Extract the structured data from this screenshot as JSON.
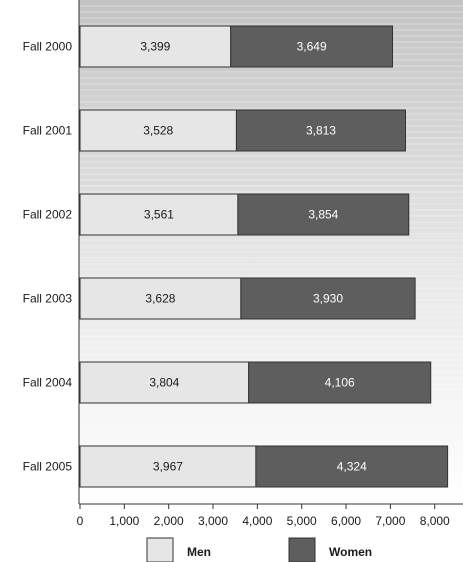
{
  "chart_data": {
    "type": "bar",
    "orientation": "horizontal",
    "stacked": true,
    "title": "",
    "xlabel": "",
    "ylabel": "",
    "categories": [
      "Fall 2000",
      "Fall 2001",
      "Fall 2002",
      "Fall 2003",
      "Fall 2004",
      "Fall 2005"
    ],
    "series": [
      {
        "name": "Men",
        "values": [
          3399,
          3528,
          3561,
          3628,
          3804,
          3967
        ],
        "labels": [
          "3,399",
          "3,528",
          "3,561",
          "3,628",
          "3,804",
          "3,967"
        ],
        "color": "#e6e6e6"
      },
      {
        "name": "Women",
        "values": [
          3649,
          3813,
          3854,
          3930,
          4106,
          4324
        ],
        "labels": [
          "3,649",
          "3,813",
          "3,854",
          "3,930",
          "4,106",
          "4,324"
        ],
        "color": "#5e5e5e"
      }
    ],
    "xlim": [
      0,
      8500
    ],
    "xticks": [
      0,
      1000,
      2000,
      3000,
      4000,
      5000,
      6000,
      7000,
      8000
    ],
    "xtick_labels": [
      "0",
      "1,000",
      "2,000",
      "3,000",
      "4,000",
      "5,000",
      "6,000",
      "7,000",
      "8,000"
    ],
    "grid": "horizontal lines",
    "legend_position": "bottom",
    "plot_background": "#cfcfcf"
  }
}
